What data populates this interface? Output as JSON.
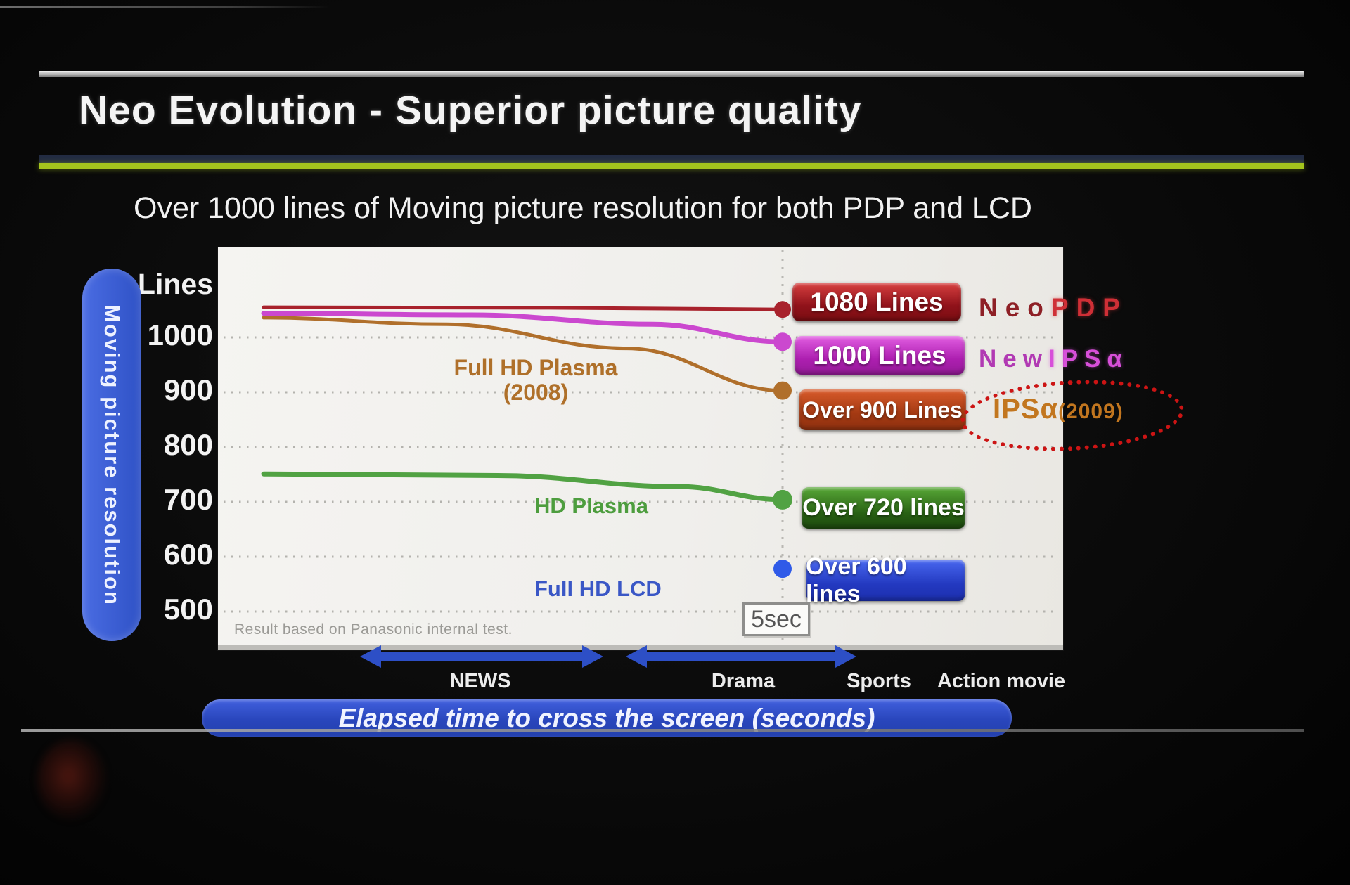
{
  "slide": {
    "title": "Neo Evolution - Superior picture quality",
    "subtitle": "Over 1000 lines of Moving picture resolution for both PDP and LCD",
    "accent_green": "#a4c41d"
  },
  "chart_data": {
    "type": "line",
    "title": "Over 1000 lines of Moving picture resolution for both PDP and LCD",
    "ylabel": "Moving picture resolution",
    "y_unit_label": "Lines",
    "y_ticks": [
      1000,
      900,
      800,
      700,
      600,
      500
    ],
    "ylim": [
      500,
      1100
    ],
    "grid": "dotted horizontal gridlines, dotted vertical marker line",
    "x_axis": "elapsed time to cross the screen (no numeric ticks shown)",
    "x_marker_label": "5sec",
    "xlabel": "Elapsed time to cross the screen (seconds)",
    "x_content_labels": [
      "NEWS",
      "Drama",
      "Sports",
      "Action movie"
    ],
    "footnote": "Result based on Panasonic internal test.",
    "series": [
      {
        "name": "NeoPDP",
        "name_part1": "Neo",
        "name_part2": "PDP",
        "badge": "1080 Lines",
        "color": "#a8222c",
        "badge_color": "#a01018",
        "points": [
          {
            "t": 0,
            "lines": 1055
          },
          {
            "t": 0.55,
            "lines": 1054
          },
          {
            "t": 1,
            "lines": 1051
          }
        ]
      },
      {
        "name": "NewIPSα",
        "name_part1": "New",
        "name_part2": "IPSα",
        "badge": "1000 Lines",
        "color": "#cb48cf",
        "badge_color": "#bb2cbe",
        "points": [
          {
            "t": 0,
            "lines": 1044
          },
          {
            "t": 0.4,
            "lines": 1041
          },
          {
            "t": 0.75,
            "lines": 1024
          },
          {
            "t": 1,
            "lines": 992
          }
        ]
      },
      {
        "name": "IPSα(2009)",
        "name_part1": "IPSα",
        "name_part2": "(2009)",
        "annotation": "red dotted emphasis ellipse",
        "badge": "Over 900 Lines",
        "color": "#b06f2b",
        "badge_color": "#b34517",
        "inline_label_line1": "Full HD Plasma",
        "inline_label_line2": "(2008)",
        "points": [
          {
            "t": 0,
            "lines": 1036
          },
          {
            "t": 0.35,
            "lines": 1024
          },
          {
            "t": 0.7,
            "lines": 980
          },
          {
            "t": 1,
            "lines": 903
          }
        ]
      },
      {
        "name": "HD Plasma",
        "inline_label_line1": "HD Plasma",
        "badge": "Over 720 lines",
        "color": "#51a243",
        "badge_color": "#2e7b17",
        "points": [
          {
            "t": 0,
            "lines": 751
          },
          {
            "t": 0.45,
            "lines": 748
          },
          {
            "t": 0.8,
            "lines": 728
          },
          {
            "t": 1,
            "lines": 704
          }
        ]
      },
      {
        "name": "Full HD LCD",
        "inline_label_line1": "Full HD LCD",
        "badge": "Over 600 lines",
        "color": "#2f5ae8",
        "badge_color": "#2b49d6",
        "points": [
          {
            "t": 1,
            "lines": 578
          }
        ]
      }
    ]
  }
}
